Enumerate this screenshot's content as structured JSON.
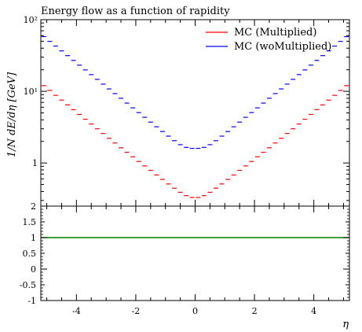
{
  "chart_data": {
    "type": "line",
    "title": "Energy flow as a function of rapidity",
    "xlabel": "η",
    "ylabel": "1/N dE/dη [GeV]",
    "xlim": [
      -5.2,
      5.2
    ],
    "ylim": [
      0.25,
      100
    ],
    "y_scale": "log",
    "grid": false,
    "legend_position": "top-right",
    "x_ticks": [
      "-4",
      "-2",
      "0",
      "2",
      "4"
    ],
    "y_ticks": [
      "1",
      "10¹",
      "10²"
    ],
    "x": [
      -5.1,
      -4.9,
      -4.7,
      -4.5,
      -4.3,
      -4.1,
      -3.9,
      -3.7,
      -3.5,
      -3.3,
      -3.1,
      -2.9,
      -2.7,
      -2.5,
      -2.3,
      -2.1,
      -1.9,
      -1.7,
      -1.5,
      -1.3,
      -1.1,
      -0.9,
      -0.7,
      -0.5,
      -0.3,
      -0.1,
      0.1,
      0.3,
      0.5,
      0.7,
      0.9,
      1.1,
      1.3,
      1.5,
      1.7,
      1.9,
      2.1,
      2.3,
      2.5,
      2.7,
      2.9,
      3.1,
      3.3,
      3.5,
      3.7,
      3.9,
      4.1,
      4.3,
      4.5,
      4.7,
      4.9,
      5.1
    ],
    "series": [
      {
        "name": "MC (Multiplied)",
        "color": "#ff0000",
        "values": [
          12.0,
          10.3,
          8.8,
          7.54,
          6.47,
          5.55,
          4.76,
          4.08,
          3.5,
          3.0,
          2.58,
          2.21,
          1.9,
          1.63,
          1.41,
          1.22,
          1.05,
          0.91,
          0.79,
          0.68,
          0.59,
          0.51,
          0.445,
          0.39,
          0.35,
          0.33,
          0.33,
          0.35,
          0.39,
          0.445,
          0.51,
          0.59,
          0.68,
          0.79,
          0.91,
          1.05,
          1.22,
          1.41,
          1.63,
          1.9,
          2.21,
          2.58,
          3.0,
          3.5,
          4.08,
          4.76,
          5.55,
          6.47,
          7.54,
          8.8,
          10.3,
          12.0
        ]
      },
      {
        "name": "MC (woMultiplied)",
        "color": "#0000ff",
        "values": [
          58.0,
          49.8,
          42.8,
          36.7,
          31.5,
          27.0,
          23.2,
          19.9,
          17.1,
          14.7,
          12.6,
          10.8,
          9.3,
          8.0,
          6.85,
          5.88,
          5.05,
          4.34,
          3.72,
          3.2,
          2.75,
          2.37,
          2.05,
          1.8,
          1.65,
          1.6,
          1.6,
          1.65,
          1.8,
          2.05,
          2.37,
          2.75,
          3.2,
          3.72,
          4.34,
          5.05,
          5.88,
          6.85,
          8.0,
          9.3,
          10.8,
          12.6,
          14.7,
          17.1,
          19.9,
          23.2,
          27.0,
          31.5,
          36.7,
          42.8,
          49.8,
          58.0
        ]
      }
    ],
    "ratio_panel": {
      "ylim": [
        -1,
        2
      ],
      "y_ticks": [
        "2",
        "1.5",
        "1",
        "0.5",
        "0",
        "-0.5",
        "-1"
      ],
      "reference_value": 1,
      "reference_color": "#008000"
    }
  }
}
